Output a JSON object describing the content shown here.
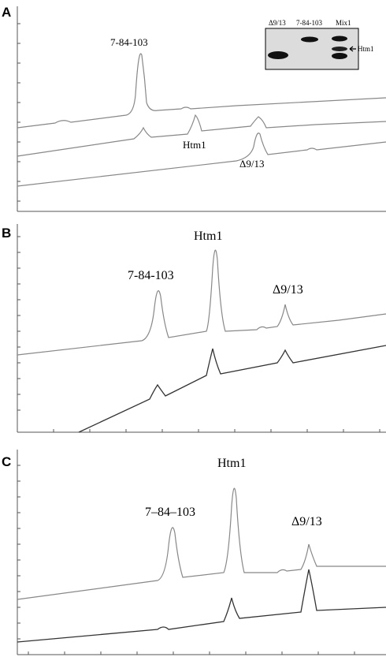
{
  "panels": [
    {
      "letter": "A",
      "peaks": [
        "7-84-103",
        "Htm1",
        "Δ9/13"
      ]
    },
    {
      "letter": "B",
      "peaks": [
        "7-84-103",
        "Htm1",
        "Δ9/13"
      ]
    },
    {
      "letter": "C",
      "peaks": [
        "7–84–103",
        "Htm1",
        "Δ9/13"
      ]
    }
  ],
  "gel": {
    "lanes": [
      "Δ9/13",
      "7-84-103",
      "Mix1"
    ],
    "arrow_label": "Htm1"
  },
  "colors": {
    "trace_light": "#888888",
    "trace_dark": "#333333",
    "axis": "#555555",
    "gel_bg": "#dcdcdc"
  }
}
